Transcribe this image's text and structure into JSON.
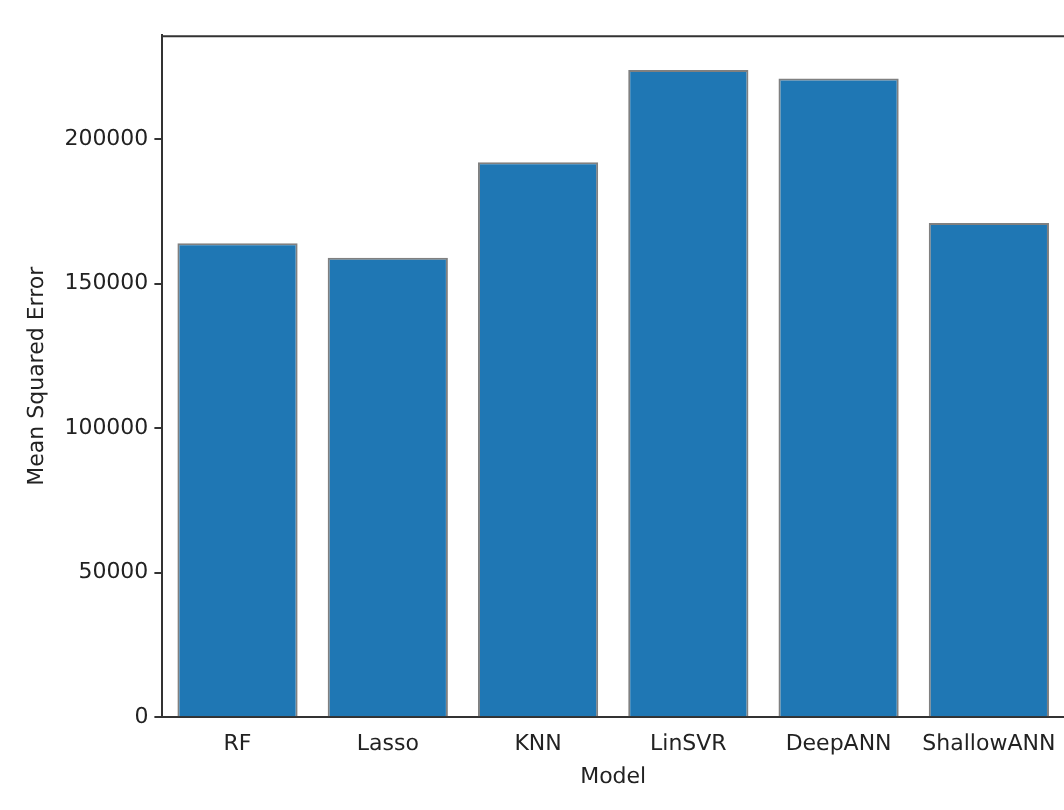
{
  "chart_data": {
    "type": "bar",
    "xlabel": "Model",
    "ylabel": "Mean Squared Error",
    "categories": [
      "RF",
      "Lasso",
      "KNN",
      "LinSVR",
      "DeepANN",
      "ShallowANN"
    ],
    "values": [
      164000,
      159000,
      192000,
      224000,
      221000,
      171000
    ],
    "color": "#1f77b4",
    "ylim": [
      0,
      236000
    ],
    "yticks": [
      0,
      50000,
      100000,
      150000,
      200000
    ],
    "grid": false,
    "legend": false
  }
}
